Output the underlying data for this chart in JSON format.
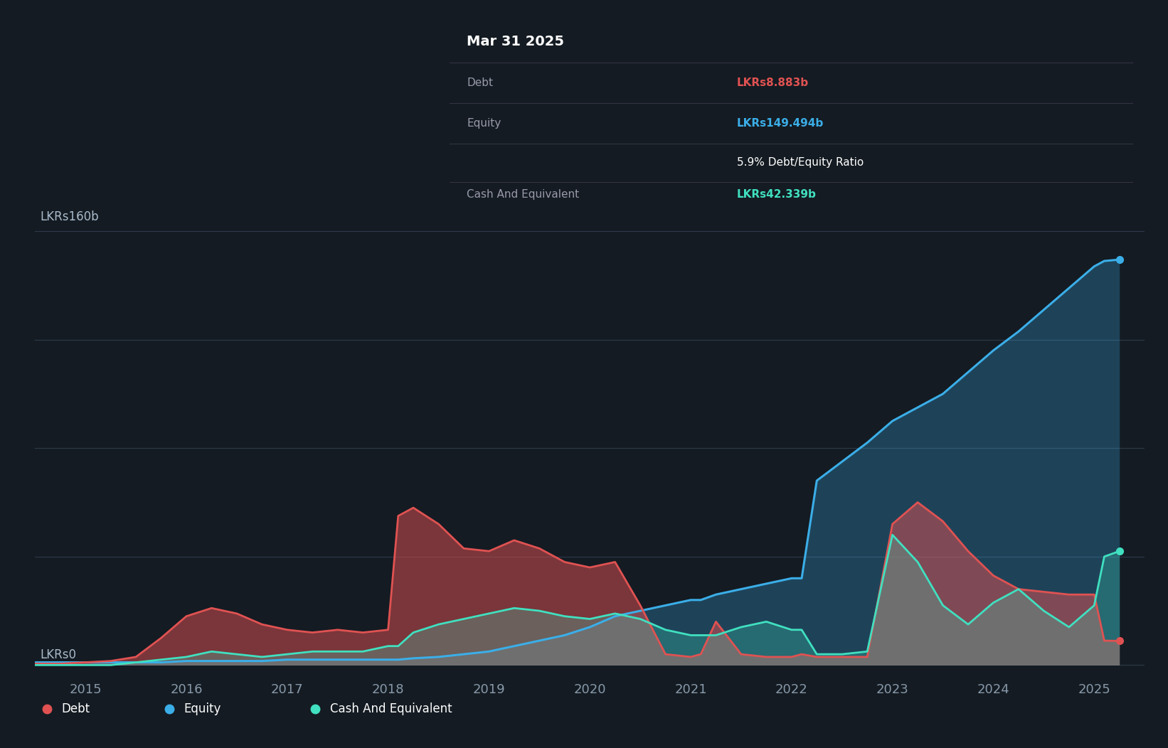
{
  "bg_color": "#141B22",
  "plot_bg_color": "#141B22",
  "grid_color": "#2e3a4a",
  "y_label": "LKRs160b",
  "y_zero_label": "LKRs0",
  "tooltip_title": "Mar 31 2025",
  "tooltip_debt_label": "Debt",
  "tooltip_debt_value": "LKRs8.883b",
  "tooltip_equity_label": "Equity",
  "tooltip_equity_value": "LKRs149.494b",
  "tooltip_ratio": "5.9% Debt/Equity Ratio",
  "tooltip_cash_label": "Cash And Equivalent",
  "tooltip_cash_value": "LKRs42.339b",
  "debt_color": "#e05252",
  "equity_color": "#3baee8",
  "cash_color": "#40e0c0",
  "legend_debt": "Debt",
  "legend_equity": "Equity",
  "legend_cash": "Cash And Equivalent",
  "x_min": 2014.5,
  "x_max": 2025.5,
  "y_min": -3,
  "y_max": 168,
  "dates": [
    2014.5,
    2014.75,
    2015.0,
    2015.25,
    2015.5,
    2015.75,
    2016.0,
    2016.25,
    2016.5,
    2016.75,
    2017.0,
    2017.25,
    2017.5,
    2017.75,
    2018.0,
    2018.1,
    2018.25,
    2018.5,
    2018.75,
    2019.0,
    2019.25,
    2019.5,
    2019.75,
    2020.0,
    2020.25,
    2020.5,
    2020.75,
    2021.0,
    2021.1,
    2021.25,
    2021.5,
    2021.75,
    2022.0,
    2022.1,
    2022.25,
    2022.5,
    2022.75,
    2023.0,
    2023.25,
    2023.5,
    2023.75,
    2024.0,
    2024.25,
    2024.5,
    2024.75,
    2025.0,
    2025.1,
    2025.25
  ],
  "debt": [
    0.5,
    0.5,
    1,
    1.5,
    3,
    10,
    18,
    21,
    19,
    15,
    13,
    12,
    13,
    12,
    13,
    55,
    58,
    52,
    43,
    42,
    46,
    43,
    38,
    36,
    38,
    22,
    4,
    3,
    4,
    16,
    4,
    3,
    3,
    4,
    3,
    3,
    3,
    52,
    60,
    53,
    42,
    33,
    28,
    27,
    26,
    26,
    9,
    8.9
  ],
  "equity": [
    1,
    1,
    1,
    1,
    1,
    1,
    1.5,
    1.5,
    1.5,
    1.5,
    2,
    2,
    2,
    2,
    2,
    2,
    2.5,
    3,
    4,
    5,
    7,
    9,
    11,
    14,
    18,
    20,
    22,
    24,
    24,
    26,
    28,
    30,
    32,
    32,
    68,
    75,
    82,
    90,
    95,
    100,
    108,
    116,
    123,
    131,
    139,
    147,
    149,
    149.5
  ],
  "cash": [
    0,
    0,
    0,
    0,
    1,
    2,
    3,
    5,
    4,
    3,
    4,
    5,
    5,
    5,
    7,
    7,
    12,
    15,
    17,
    19,
    21,
    20,
    18,
    17,
    19,
    17,
    13,
    11,
    11,
    11,
    14,
    16,
    13,
    13,
    4,
    4,
    5,
    48,
    38,
    22,
    15,
    23,
    28,
    20,
    14,
    22,
    40,
    42
  ]
}
